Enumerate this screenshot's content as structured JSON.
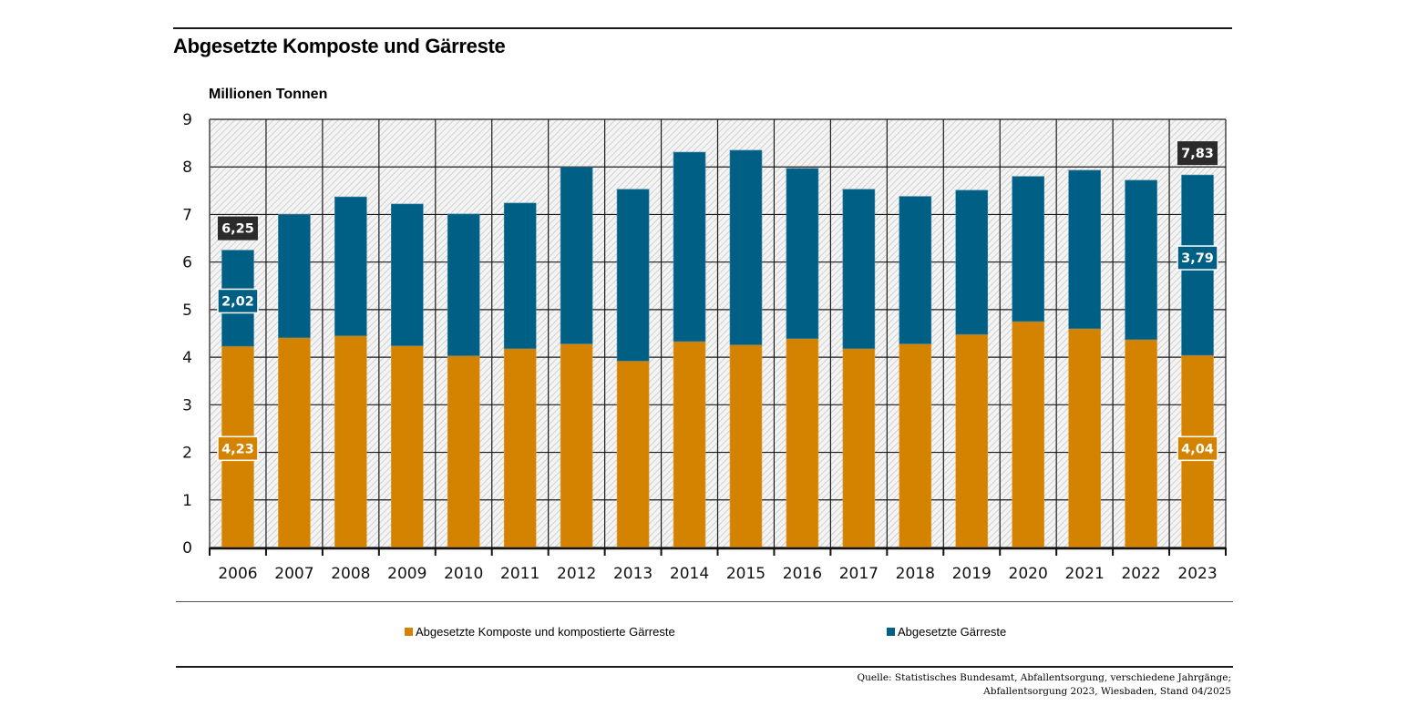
{
  "header": {
    "title": "Abgesetzte Komposte und Gärreste",
    "unit_label": "Millionen Tonnen"
  },
  "colors": {
    "kompost": "#d48300",
    "gaerreste": "#005f84",
    "total_label_bg": "#2b2b2b",
    "grid": "#1a1a1a"
  },
  "legend": {
    "items": [
      {
        "label": "Abgesetzte Komposte und kompostierte Gärreste",
        "color": "#d48300"
      },
      {
        "label": "Abgesetzte Gärreste",
        "color": "#005f84"
      }
    ]
  },
  "source": {
    "line1": "Quelle: Statistisches Bundesamt, Abfallentsorgung, verschiedene Jahrgänge;",
    "line2": "Abfallentsorgung 2023, Wiesbaden, Stand 04/2025"
  },
  "chart_data": {
    "type": "bar",
    "stacked": true,
    "title": "Abgesetzte Komposte und Gärreste",
    "xlabel": "",
    "ylabel": "Millionen Tonnen",
    "ylim": [
      0,
      9
    ],
    "yticks": [
      "0",
      "1",
      "2",
      "3",
      "4",
      "5",
      "6",
      "7",
      "8",
      "9"
    ],
    "grid": true,
    "legend_position": "bottom",
    "categories": [
      "2006",
      "2007",
      "2008",
      "2009",
      "2010",
      "2011",
      "2012",
      "2013",
      "2014",
      "2015",
      "2016",
      "2017",
      "2018",
      "2019",
      "2020",
      "2021",
      "2022",
      "2023"
    ],
    "series": [
      {
        "name": "Abgesetzte Komposte und kompostierte Gärreste",
        "color": "#d48300",
        "values": [
          4.23,
          4.41,
          4.45,
          4.24,
          4.03,
          4.18,
          4.28,
          3.92,
          4.33,
          4.26,
          4.39,
          4.18,
          4.28,
          4.48,
          4.75,
          4.6,
          4.37,
          4.04
        ]
      },
      {
        "name": "Abgesetzte Gärreste",
        "color": "#005f84",
        "values": [
          2.02,
          2.59,
          2.92,
          2.98,
          2.98,
          3.06,
          3.71,
          3.61,
          3.98,
          4.09,
          3.58,
          3.35,
          3.1,
          3.03,
          3.05,
          3.33,
          3.35,
          3.79
        ]
      }
    ],
    "data_labels": [
      {
        "category": "2006",
        "series": "total",
        "text": "6,25"
      },
      {
        "category": "2006",
        "series": "Abgesetzte Gärreste",
        "text": "2,02"
      },
      {
        "category": "2006",
        "series": "Abgesetzte Komposte und kompostierte Gärreste",
        "text": "4,23"
      },
      {
        "category": "2023",
        "series": "total",
        "text": "7,83"
      },
      {
        "category": "2023",
        "series": "Abgesetzte Gärreste",
        "text": "3,79"
      },
      {
        "category": "2023",
        "series": "Abgesetzte Komposte und kompostierte Gärreste",
        "text": "4,04"
      }
    ]
  }
}
